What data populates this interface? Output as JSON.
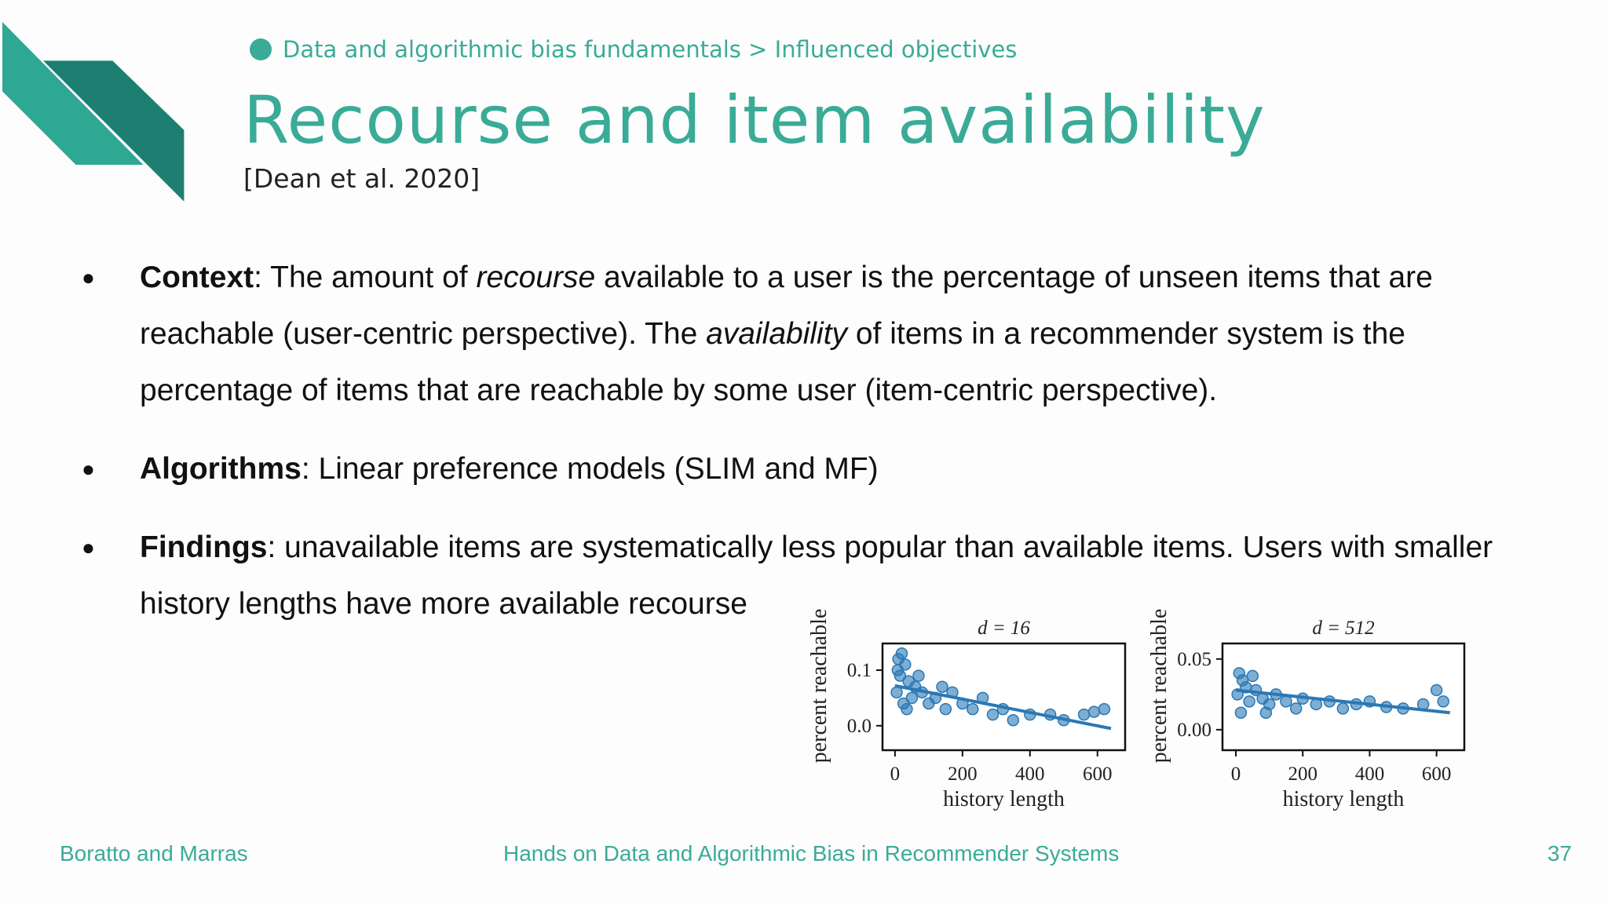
{
  "header": {
    "breadcrumb": "Data and algorithmic bias fundamentals > Influenced objectives",
    "title": "Recourse and item availability",
    "citation": "[Dean et al. 2020]"
  },
  "bullets": [
    {
      "label": "Context",
      "segments": [
        ": The amount of ",
        "recourse",
        " available to a user is the percentage of unseen items that are reachable (user-centric perspective). The ",
        "availability",
        " of items in a recommender system is the percentage of items that are reachable by some user (item-centric perspective)."
      ]
    },
    {
      "label": "Algorithms",
      "segments": [
        ": Linear preference models (SLIM and MF)"
      ]
    },
    {
      "label": "Findings",
      "segments": [
        ": unavailable items are systematically less popular than available items.  Users with smaller history lengths have more available recourse"
      ]
    }
  ],
  "footer": {
    "left": "Boratto and Marras",
    "center": "Hands on Data and Algorithmic Bias in Recommender Systems",
    "page": "37"
  },
  "chart_data": [
    {
      "type": "scatter",
      "title": "d = 16",
      "xlabel": "history length",
      "ylabel": "percent reachable",
      "color": "#2a78b5",
      "x": [
        10,
        20,
        15,
        30,
        5,
        40,
        50,
        25,
        60,
        80,
        100,
        120,
        150,
        170,
        200,
        230,
        260,
        290,
        320,
        350,
        400,
        460,
        500,
        560,
        590,
        620,
        8,
        35,
        70,
        140
      ],
      "values": [
        0.12,
        0.13,
        0.09,
        0.11,
        0.06,
        0.08,
        0.05,
        0.04,
        0.07,
        0.06,
        0.04,
        0.05,
        0.03,
        0.06,
        0.04,
        0.03,
        0.05,
        0.02,
        0.03,
        0.01,
        0.02,
        0.02,
        0.01,
        0.02,
        0.025,
        0.03,
        0.1,
        0.03,
        0.09,
        0.07
      ],
      "line_x": [
        0,
        640
      ],
      "line_values": [
        0.072,
        -0.005
      ],
      "xlim": [
        -37,
        682
      ],
      "xticks": [
        0,
        200,
        400,
        600
      ],
      "ylim": [
        -0.044,
        0.148
      ],
      "yticks": [
        {
          "value": 0,
          "label": "0.0"
        },
        0.1
      ]
    },
    {
      "type": "scatter",
      "title": "d = 512",
      "xlabel": "history length",
      "ylabel": "percent reachable",
      "color": "#2a78b5",
      "x": [
        10,
        20,
        30,
        5,
        40,
        60,
        80,
        100,
        120,
        150,
        180,
        200,
        240,
        280,
        320,
        360,
        400,
        450,
        500,
        560,
        600,
        620,
        15,
        50,
        90
      ],
      "values": [
        0.04,
        0.035,
        0.03,
        0.025,
        0.02,
        0.028,
        0.022,
        0.018,
        0.025,
        0.02,
        0.015,
        0.022,
        0.018,
        0.02,
        0.015,
        0.018,
        0.02,
        0.016,
        0.015,
        0.018,
        0.028,
        0.02,
        0.012,
        0.038,
        0.012
      ],
      "line_x": [
        0,
        640
      ],
      "line_values": [
        0.028,
        0.012
      ],
      "xlim": [
        -40,
        683
      ],
      "xticks": [
        0,
        200,
        400,
        600
      ],
      "ylim": [
        -0.0145,
        0.061
      ],
      "yticks": [
        {
          "value": 0,
          "label": "0.00"
        },
        {
          "value": 0.05,
          "label": "0.05"
        }
      ]
    }
  ]
}
